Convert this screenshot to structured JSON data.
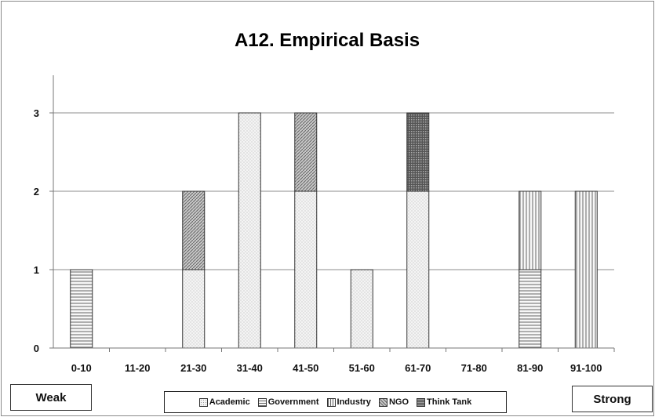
{
  "chart_data": {
    "type": "bar",
    "stacked": true,
    "title": "A12. Empirical Basis",
    "categories": [
      "0-10",
      "11-20",
      "21-30",
      "31-40",
      "41-50",
      "51-60",
      "61-70",
      "71-80",
      "81-90",
      "91-100"
    ],
    "series": [
      {
        "name": "Academic",
        "values": [
          0,
          0,
          1,
          3,
          2,
          1,
          2,
          0,
          0,
          0
        ]
      },
      {
        "name": "Government",
        "values": [
          1,
          0,
          0,
          0,
          0,
          0,
          0,
          0,
          1,
          0
        ]
      },
      {
        "name": "Industry",
        "values": [
          0,
          0,
          0,
          0,
          0,
          0,
          0,
          0,
          1,
          2
        ]
      },
      {
        "name": "NGO",
        "values": [
          0,
          0,
          1,
          0,
          1,
          0,
          0,
          0,
          0,
          0
        ]
      },
      {
        "name": "Think Tank",
        "values": [
          0,
          0,
          0,
          0,
          0,
          0,
          1,
          0,
          0,
          0
        ]
      }
    ],
    "ylim": [
      0,
      3
    ],
    "yticks": [
      0,
      1,
      2,
      3
    ],
    "grid": true,
    "legend_position": "bottom",
    "xlabel": "",
    "ylabel": ""
  },
  "annotations": {
    "left_label": "Weak",
    "right_label": "Strong"
  }
}
